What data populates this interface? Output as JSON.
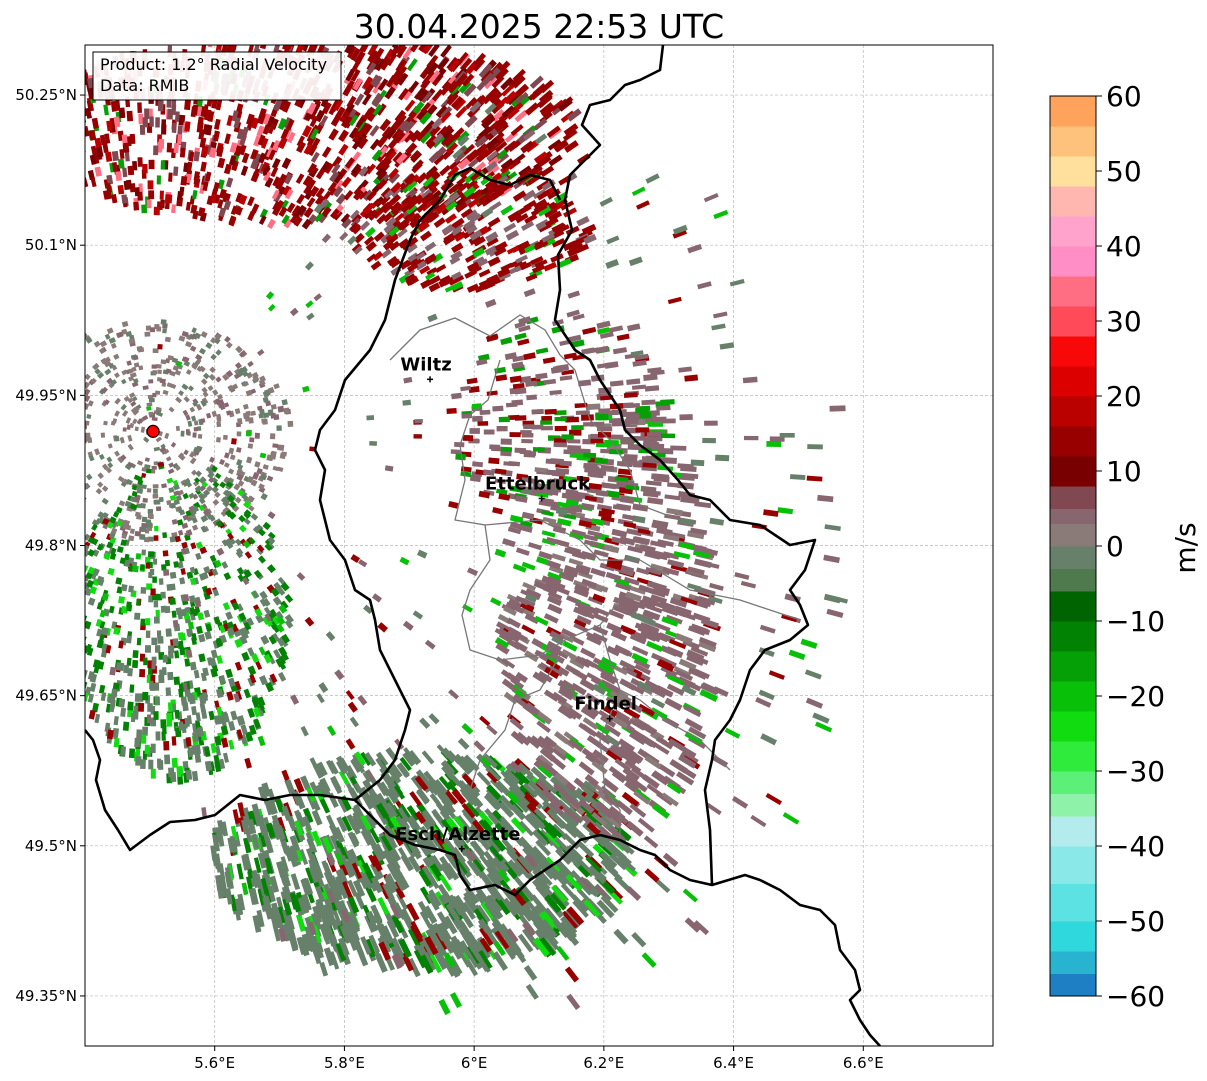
{
  "title": "30.04.2025 22:53 UTC",
  "info": {
    "product": "Product: 1.2° Radial Velocity",
    "data": "Data: RMIB"
  },
  "map": {
    "lon_range": [
      5.4,
      6.8
    ],
    "lat_range": [
      49.3,
      50.3
    ],
    "lon_ticks": [
      {
        "value": 5.6,
        "label": "5.6°E"
      },
      {
        "value": 5.8,
        "label": "5.8°E"
      },
      {
        "value": 6.0,
        "label": "6°E"
      },
      {
        "value": 6.2,
        "label": "6.2°E"
      },
      {
        "value": 6.4,
        "label": "6.4°E"
      },
      {
        "value": 6.6,
        "label": "6.6°E"
      }
    ],
    "lat_ticks": [
      {
        "value": 50.25,
        "label": "50.25°N"
      },
      {
        "value": 50.1,
        "label": "50.1°N"
      },
      {
        "value": 49.95,
        "label": "49.95°N"
      },
      {
        "value": 49.8,
        "label": "49.8°N"
      },
      {
        "value": 49.65,
        "label": "49.65°N"
      },
      {
        "value": 49.5,
        "label": "49.5°N"
      },
      {
        "value": 49.35,
        "label": "49.35°N"
      }
    ],
    "radar_site": {
      "lon": 5.505,
      "lat": 49.914
    },
    "cities": [
      {
        "name": "Wiltz",
        "lon": 5.932,
        "lat": 49.966
      },
      {
        "name": "Ettelbruck",
        "lon": 6.104,
        "lat": 49.847
      },
      {
        "name": "Findel",
        "lon": 6.209,
        "lat": 49.627
      },
      {
        "name": "Esch/Alzette",
        "lon": 5.981,
        "lat": 49.497
      }
    ]
  },
  "colorbar": {
    "unit": "m/s",
    "vmin": -60,
    "vmax": 60,
    "ticks": [
      {
        "value": 60,
        "label": "60"
      },
      {
        "value": 50,
        "label": "50"
      },
      {
        "value": 40,
        "label": "40"
      },
      {
        "value": 30,
        "label": "30"
      },
      {
        "value": 20,
        "label": "20"
      },
      {
        "value": 10,
        "label": "10"
      },
      {
        "value": 0,
        "label": "0"
      },
      {
        "value": -10,
        "label": "−10"
      },
      {
        "value": -20,
        "label": "−20"
      },
      {
        "value": -30,
        "label": "−30"
      },
      {
        "value": -40,
        "label": "−40"
      },
      {
        "value": -50,
        "label": "−50"
      },
      {
        "value": -60,
        "label": "−60"
      }
    ],
    "bands": [
      {
        "from": -60,
        "to": -57,
        "color": "#1f7fc4"
      },
      {
        "from": -57,
        "to": -54,
        "color": "#28b4d0"
      },
      {
        "from": -54,
        "to": -50,
        "color": "#2fd8dc"
      },
      {
        "from": -50,
        "to": -45,
        "color": "#5ce2e2"
      },
      {
        "from": -45,
        "to": -40,
        "color": "#8ae8e8"
      },
      {
        "from": -40,
        "to": -36,
        "color": "#b4ecee"
      },
      {
        "from": -36,
        "to": -33,
        "color": "#8ef2a8"
      },
      {
        "from": -33,
        "to": -30,
        "color": "#5cf078"
      },
      {
        "from": -30,
        "to": -26,
        "color": "#2eeb3c"
      },
      {
        "from": -26,
        "to": -22,
        "color": "#10dc10"
      },
      {
        "from": -22,
        "to": -18,
        "color": "#08c008"
      },
      {
        "from": -18,
        "to": -14,
        "color": "#05a005"
      },
      {
        "from": -14,
        "to": -10,
        "color": "#028202"
      },
      {
        "from": -10,
        "to": -6,
        "color": "#006400"
      },
      {
        "from": -6,
        "to": -3,
        "color": "#4e7a4e"
      },
      {
        "from": -3,
        "to": 0,
        "color": "#66806a"
      },
      {
        "from": 0,
        "to": 3,
        "color": "#8a7a78"
      },
      {
        "from": 3,
        "to": 5,
        "color": "#876670"
      },
      {
        "from": 5,
        "to": 8,
        "color": "#804850"
      },
      {
        "from": 8,
        "to": 12,
        "color": "#780000"
      },
      {
        "from": 12,
        "to": 16,
        "color": "#980000"
      },
      {
        "from": 16,
        "to": 20,
        "color": "#bb0000"
      },
      {
        "from": 20,
        "to": 24,
        "color": "#dd0000"
      },
      {
        "from": 24,
        "to": 28,
        "color": "#f80808"
      },
      {
        "from": 28,
        "to": 32,
        "color": "#ff4a5a"
      },
      {
        "from": 32,
        "to": 36,
        "color": "#ff6e82"
      },
      {
        "from": 36,
        "to": 40,
        "color": "#ff8ec6"
      },
      {
        "from": 40,
        "to": 44,
        "color": "#ffa3cc"
      },
      {
        "from": 44,
        "to": 48,
        "color": "#ffb7b0"
      },
      {
        "from": 48,
        "to": 52,
        "color": "#ffe09c"
      },
      {
        "from": 52,
        "to": 56,
        "color": "#ffc27c"
      },
      {
        "from": 56,
        "to": 60,
        "color": "#ffa25c"
      }
    ]
  }
}
